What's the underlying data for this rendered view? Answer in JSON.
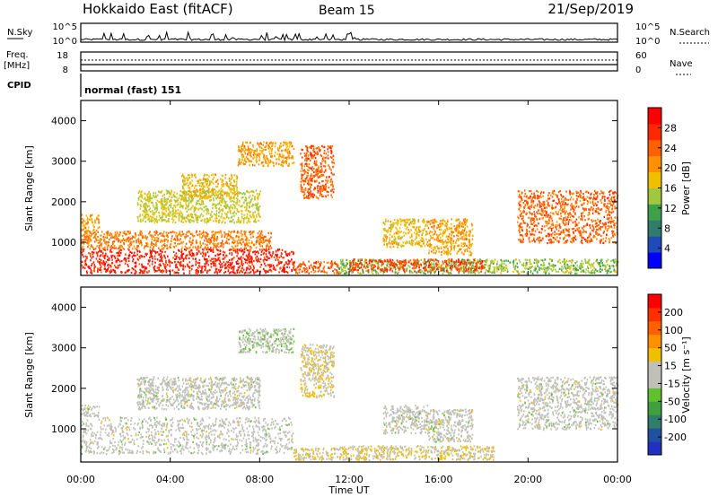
{
  "header": {
    "station": "Hokkaido East (fitACF)",
    "beam": "Beam 15",
    "date": "21/Sep/2019"
  },
  "strip_panels": {
    "nsky": {
      "label": "N.Sky",
      "ticks": [
        "10^5",
        "10^0"
      ]
    },
    "nsearch": {
      "label": "N.Search",
      "ticks": [
        "10^5",
        "10^0"
      ]
    },
    "freq": {
      "label_line1": "Freq.",
      "label_line2": "[MHz]",
      "ticks": [
        "18",
        "8"
      ]
    },
    "nave": {
      "label": "Nave",
      "ticks": [
        "60",
        "0"
      ]
    },
    "cpid": {
      "label": "CPID",
      "mode": "normal (fast) 151"
    }
  },
  "chart_data": [
    {
      "type": "heatmap",
      "name": "power",
      "ylabel": "Slant Range [km]",
      "xlabel": "",
      "xticks": [
        "00:00",
        "04:00",
        "08:00",
        "12:00",
        "16:00",
        "20:00",
        "00:00"
      ],
      "xlim_hours": [
        0,
        24
      ],
      "yticks": [
        "1000",
        "2000",
        "3000",
        "4000"
      ],
      "ylim": [
        180,
        4500
      ],
      "colorbar": {
        "label": "Power [dB]",
        "ticks": [
          "4",
          "8",
          "12",
          "16",
          "20",
          "24",
          "28"
        ],
        "range": [
          0,
          32
        ],
        "colors": [
          "#0000ff",
          "#1f4ab8",
          "#2f7d6a",
          "#3fa04a",
          "#9fc840",
          "#f0c000",
          "#ff9000",
          "#ff6000",
          "#ff2800",
          "#ff0000"
        ]
      },
      "regions": [
        {
          "t": [
            0,
            9.5
          ],
          "r": [
            250,
            850
          ],
          "value": 28
        },
        {
          "t": [
            0,
            8.5
          ],
          "r": [
            850,
            1300
          ],
          "value": 22
        },
        {
          "t": [
            0,
            0.8
          ],
          "r": [
            1300,
            1700
          ],
          "value": 20
        },
        {
          "t": [
            2.5,
            8.0
          ],
          "r": [
            1500,
            2300
          ],
          "value": 16
        },
        {
          "t": [
            4.5,
            7.0
          ],
          "r": [
            2100,
            2700
          ],
          "value": 18
        },
        {
          "t": [
            7.0,
            9.5
          ],
          "r": [
            2900,
            3500
          ],
          "value": 20
        },
        {
          "t": [
            9.8,
            11.3
          ],
          "r": [
            2100,
            3400
          ],
          "value": 24
        },
        {
          "t": [
            9.5,
            11.5
          ],
          "r": [
            250,
            550
          ],
          "value": 24
        },
        {
          "t": [
            11.5,
            24
          ],
          "r": [
            250,
            600
          ],
          "value": 14
        },
        {
          "t": [
            13.5,
            15.5
          ],
          "r": [
            900,
            1600
          ],
          "value": 18
        },
        {
          "t": [
            15.5,
            17.5
          ],
          "r": [
            700,
            1600
          ],
          "value": 20
        },
        {
          "t": [
            19.5,
            24
          ],
          "r": [
            1000,
            2300
          ],
          "value": 24
        },
        {
          "t": [
            12.0,
            18.0
          ],
          "r": [
            300,
            600
          ],
          "value": 26
        }
      ]
    },
    {
      "type": "heatmap",
      "name": "velocity",
      "ylabel": "Slant Range [km]",
      "xlabel": "Time UT",
      "xticks": [
        "00:00",
        "04:00",
        "08:00",
        "12:00",
        "16:00",
        "20:00",
        "00:00"
      ],
      "xlim_hours": [
        0,
        24
      ],
      "yticks": [
        "1000",
        "2000",
        "3000",
        "4000"
      ],
      "ylim": [
        180,
        4500
      ],
      "colorbar": {
        "label": "Velocity [m s⁻¹]",
        "ticks": [
          "200",
          "100",
          "50",
          "15",
          "-15",
          "-50",
          "-100",
          "-200"
        ],
        "range": [
          -250,
          250
        ],
        "colors": [
          "#2030c0",
          "#2050a0",
          "#2f7d6a",
          "#40a040",
          "#60c030",
          "#c0c0b8",
          "#c0c0b8",
          "#f0c000",
          "#ff9000",
          "#ff6000",
          "#ff3000",
          "#ff0000"
        ]
      },
      "regions": [
        {
          "t": [
            0,
            9.5
          ],
          "r": [
            400,
            1300
          ],
          "value": 0
        },
        {
          "t": [
            0,
            0.8
          ],
          "r": [
            1300,
            1600
          ],
          "value": 0
        },
        {
          "t": [
            2.5,
            8.0
          ],
          "r": [
            1500,
            2300
          ],
          "value": 0
        },
        {
          "t": [
            7.0,
            9.5
          ],
          "r": [
            2900,
            3500
          ],
          "value": -20
        },
        {
          "t": [
            9.8,
            11.3
          ],
          "r": [
            1800,
            3100
          ],
          "value": 30
        },
        {
          "t": [
            9.5,
            11.5
          ],
          "r": [
            250,
            550
          ],
          "value": 40
        },
        {
          "t": [
            11.5,
            18.5
          ],
          "r": [
            250,
            600
          ],
          "value": 40
        },
        {
          "t": [
            13.5,
            15.5
          ],
          "r": [
            900,
            1600
          ],
          "value": 0
        },
        {
          "t": [
            15.5,
            17.5
          ],
          "r": [
            700,
            1500
          ],
          "value": 0
        },
        {
          "t": [
            19.5,
            24
          ],
          "r": [
            1000,
            2300
          ],
          "value": 0
        }
      ]
    }
  ]
}
